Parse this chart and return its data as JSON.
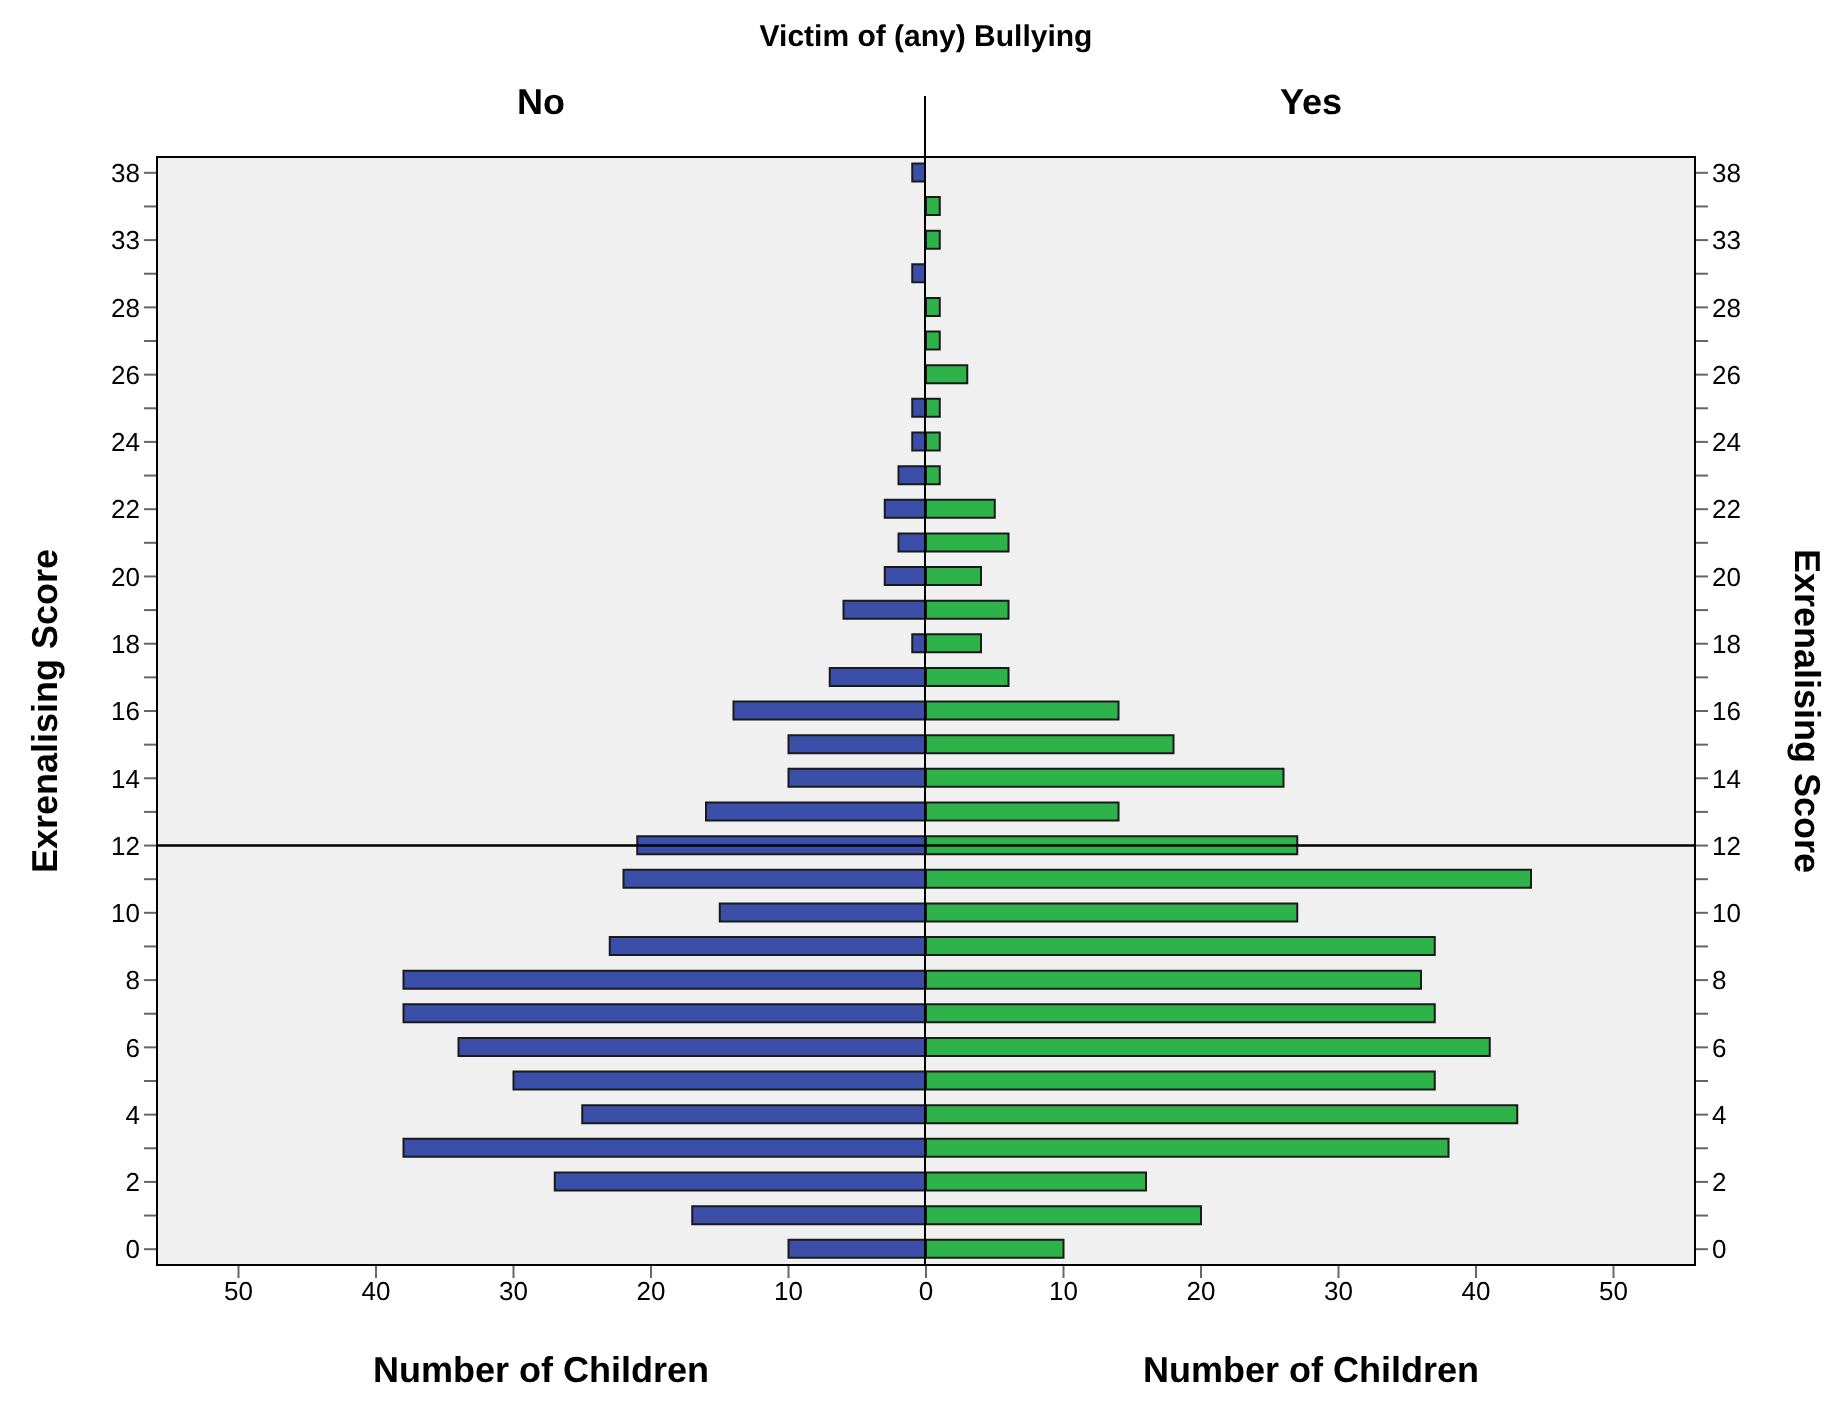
{
  "chart_data": [
    {
      "type": "bar",
      "orientation": "horizontal",
      "title": "Victim of (any) Bullying",
      "subtitle": "No",
      "xlabel": "Number of Children",
      "ylabel": "Exrenalising Score",
      "categories": [
        "38",
        null,
        "33",
        null,
        "28",
        null,
        "26",
        null,
        "24",
        null,
        "22",
        null,
        "20",
        null,
        "18",
        null,
        "16",
        null,
        "14",
        null,
        "12",
        null,
        "10",
        null,
        "8",
        null,
        "6",
        null,
        "4",
        null,
        "2",
        null,
        "0"
      ],
      "series": [
        {
          "color": "#3b4fa8",
          "values": [
            1,
            0,
            0,
            1,
            0,
            0,
            0,
            1,
            1,
            2,
            3,
            2,
            3,
            6,
            1,
            7,
            14,
            10,
            10,
            16,
            21,
            22,
            15,
            23,
            38,
            38,
            34,
            30,
            25,
            38,
            27,
            17,
            10
          ]
        }
      ],
      "xlim": [
        56,
        0
      ],
      "xticks": [
        50,
        40,
        30,
        20,
        10,
        {
          "value": 0,
          "label": null
        }
      ],
      "ref_lines": [
        {
          "axis": "y",
          "value": "12"
        }
      ]
    },
    {
      "type": "bar",
      "orientation": "horizontal",
      "subtitle": "Yes",
      "xlabel": "Number of Children",
      "ylabel": "Exrenalising Score",
      "categories": [
        "38",
        null,
        "33",
        null,
        "28",
        null,
        "26",
        null,
        "24",
        null,
        "22",
        null,
        "20",
        null,
        "18",
        null,
        "16",
        null,
        "14",
        null,
        "12",
        null,
        "10",
        null,
        "8",
        null,
        "6",
        null,
        "4",
        null,
        "2",
        null,
        "0"
      ],
      "series": [
        {
          "color": "#2db34a",
          "values": [
            0,
            1,
            1,
            0,
            1,
            1,
            3,
            1,
            1,
            1,
            5,
            6,
            4,
            6,
            4,
            6,
            14,
            18,
            26,
            14,
            27,
            44,
            27,
            37,
            36,
            37,
            41,
            37,
            43,
            38,
            16,
            20,
            10
          ]
        }
      ],
      "xlim": [
        0,
        56
      ],
      "xticks": [
        0,
        10,
        20,
        30,
        40,
        50
      ],
      "ref_lines": [
        {
          "axis": "y",
          "value": "12"
        }
      ]
    }
  ]
}
